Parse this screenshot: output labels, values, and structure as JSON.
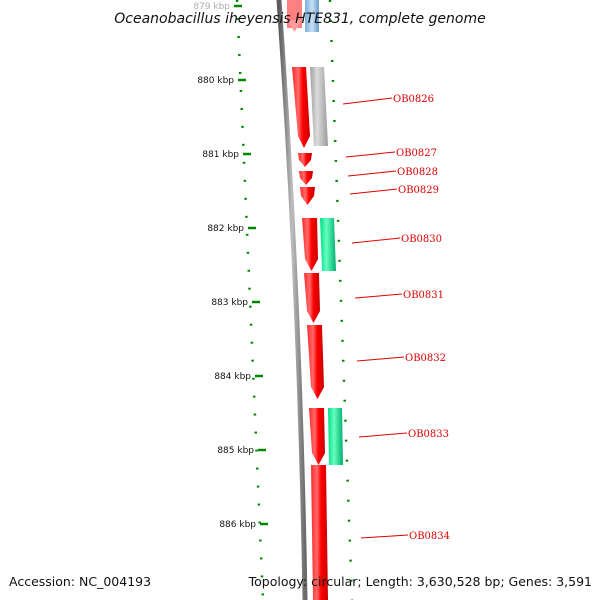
{
  "title": "Oceanobacillus iheyensis HTE831, complete genome",
  "accession": "Accession: NC_004193",
  "summary": "Topology: circular; Length: 3,630,528 bp; Genes: 3,591",
  "scale": {
    "ticks": [
      "879 kbp",
      "880 kbp",
      "881 kbp",
      "882 kbp",
      "883 kbp",
      "884 kbp",
      "885 kbp",
      "886 kbp"
    ]
  },
  "colors": {
    "gene_red": "#ff0000",
    "gene_green": "#00ee99",
    "gene_grey": "#aaaaaa",
    "gene_blue": "#88b8e0",
    "backbone": "#777777",
    "tick_green": "#008800",
    "label_red": "#e00000"
  },
  "genes": [
    {
      "label": "OB0826"
    },
    {
      "label": "OB0827"
    },
    {
      "label": "OB0828"
    },
    {
      "label": "OB0829"
    },
    {
      "label": "OB0830"
    },
    {
      "label": "OB0831"
    },
    {
      "label": "OB0832"
    },
    {
      "label": "OB0833"
    },
    {
      "label": "OB0834"
    }
  ]
}
